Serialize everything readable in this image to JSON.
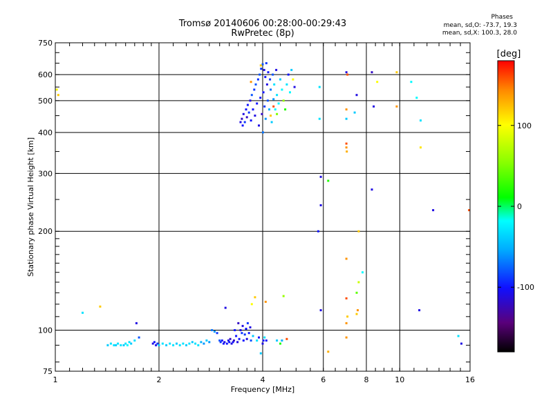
{
  "header": {
    "title_line1": "Tromsø 20140606 00:28:00-00:29:43",
    "title_line2": "RwPretec (8p)",
    "phases_title": "Phases",
    "phases_o": "mean, sd,O: -73.7, 19.3",
    "phases_x": "mean, sd,X: 100.3, 28.0"
  },
  "chart_data": {
    "type": "scatter",
    "xlabel": "Frequency [MHz]",
    "ylabel": "Stationary phase Virtual Height [km]",
    "x_scale": "log",
    "y_scale": "log",
    "xlim": [
      1,
      16
    ],
    "ylim": [
      75,
      750
    ],
    "x_ticks": [
      1,
      2,
      4,
      6,
      8,
      10,
      16
    ],
    "y_ticks": [
      75,
      100,
      200,
      300,
      400,
      500,
      600,
      750
    ],
    "grid": true,
    "colorbar": {
      "label": "[deg]",
      "ticks": [
        100,
        0,
        -100
      ],
      "range": [
        -180,
        180
      ]
    },
    "points": [
      [
        1.01,
        540,
        100
      ],
      [
        1.02,
        520,
        120
      ],
      [
        1.2,
        113,
        -30
      ],
      [
        1.35,
        118,
        120
      ],
      [
        1.42,
        90,
        -40
      ],
      [
        1.45,
        91,
        -30
      ],
      [
        1.48,
        90,
        -30
      ],
      [
        1.5,
        90,
        -40
      ],
      [
        1.52,
        91,
        -30
      ],
      [
        1.55,
        90,
        -30
      ],
      [
        1.58,
        90,
        -40
      ],
      [
        1.6,
        91,
        -30
      ],
      [
        1.62,
        90,
        -20
      ],
      [
        1.64,
        92,
        -30
      ],
      [
        1.66,
        91,
        -40
      ],
      [
        1.7,
        93,
        -30
      ],
      [
        1.72,
        105,
        -110
      ],
      [
        1.75,
        95,
        -80
      ],
      [
        1.92,
        91,
        -110
      ],
      [
        1.94,
        92,
        -100
      ],
      [
        1.96,
        90,
        -110
      ],
      [
        1.98,
        91,
        -90
      ],
      [
        2.0,
        90,
        -40
      ],
      [
        2.05,
        91,
        -30
      ],
      [
        2.1,
        90,
        -40
      ],
      [
        2.15,
        91,
        -30
      ],
      [
        2.2,
        90,
        -30
      ],
      [
        2.25,
        91,
        -40
      ],
      [
        2.3,
        90,
        -30
      ],
      [
        2.35,
        91,
        -30
      ],
      [
        2.4,
        90,
        -40
      ],
      [
        2.45,
        91,
        -30
      ],
      [
        2.5,
        92,
        -40
      ],
      [
        2.55,
        91,
        -30
      ],
      [
        2.6,
        90,
        -30
      ],
      [
        2.65,
        92,
        -50
      ],
      [
        2.7,
        91,
        -60
      ],
      [
        2.75,
        93,
        -40
      ],
      [
        2.8,
        92,
        -60
      ],
      [
        2.85,
        100,
        -70
      ],
      [
        2.9,
        99,
        -60
      ],
      [
        2.95,
        98,
        -90
      ],
      [
        3.0,
        93,
        -80
      ],
      [
        3.02,
        92,
        -90
      ],
      [
        3.05,
        93,
        -100
      ],
      [
        3.08,
        91,
        -100
      ],
      [
        3.1,
        92,
        -110
      ],
      [
        3.12,
        117,
        -110
      ],
      [
        3.15,
        91,
        -100
      ],
      [
        3.18,
        93,
        -110
      ],
      [
        3.2,
        92,
        -100
      ],
      [
        3.22,
        94,
        -120
      ],
      [
        3.25,
        91,
        -110
      ],
      [
        3.28,
        92,
        -100
      ],
      [
        3.3,
        93,
        -120
      ],
      [
        3.32,
        100,
        -100
      ],
      [
        3.35,
        96,
        -100
      ],
      [
        3.38,
        92,
        -110
      ],
      [
        3.4,
        105,
        -120
      ],
      [
        3.42,
        94,
        -100
      ],
      [
        3.45,
        100,
        -110
      ],
      [
        3.48,
        98,
        -90
      ],
      [
        3.5,
        103,
        -110
      ],
      [
        3.52,
        93,
        -100
      ],
      [
        3.55,
        97,
        -90
      ],
      [
        3.58,
        101,
        -100
      ],
      [
        3.6,
        94,
        -110
      ],
      [
        3.62,
        105,
        -90
      ],
      [
        3.65,
        98,
        -100
      ],
      [
        3.68,
        102,
        -110
      ],
      [
        3.7,
        93,
        -80
      ],
      [
        3.72,
        120,
        100
      ],
      [
        3.75,
        96,
        -40
      ],
      [
        3.8,
        126,
        120
      ],
      [
        3.85,
        93,
        -30
      ],
      [
        3.9,
        95,
        -100
      ],
      [
        3.95,
        85,
        -40
      ],
      [
        4.0,
        91,
        -110
      ],
      [
        4.02,
        93,
        -100
      ],
      [
        4.05,
        95,
        -30
      ],
      [
        4.08,
        122,
        140
      ],
      [
        4.1,
        93,
        -100
      ],
      [
        4.4,
        93,
        -40
      ],
      [
        4.5,
        91,
        20
      ],
      [
        4.55,
        93,
        -50
      ],
      [
        4.6,
        127,
        60
      ],
      [
        4.7,
        94,
        160
      ],
      [
        3.45,
        430,
        -110
      ],
      [
        3.48,
        440,
        -120
      ],
      [
        3.5,
        420,
        -100
      ],
      [
        3.52,
        455,
        -110
      ],
      [
        3.55,
        430,
        -90
      ],
      [
        3.58,
        470,
        -100
      ],
      [
        3.6,
        445,
        -120
      ],
      [
        3.62,
        485,
        -100
      ],
      [
        3.65,
        460,
        -90
      ],
      [
        3.68,
        500,
        -110
      ],
      [
        3.7,
        435,
        -100
      ],
      [
        3.72,
        520,
        -80
      ],
      [
        3.75,
        470,
        -100
      ],
      [
        3.78,
        540,
        -90
      ],
      [
        3.8,
        450,
        -110
      ],
      [
        3.82,
        560,
        -80
      ],
      [
        3.85,
        490,
        -100
      ],
      [
        3.88,
        580,
        -90
      ],
      [
        3.9,
        420,
        -110
      ],
      [
        3.92,
        600,
        -80
      ],
      [
        3.94,
        510,
        -100
      ],
      [
        3.96,
        625,
        -90
      ],
      [
        3.98,
        455,
        -120
      ],
      [
        4.0,
        645,
        -80
      ],
      [
        4.01,
        400,
        -70
      ],
      [
        4.02,
        530,
        -100
      ],
      [
        4.04,
        620,
        -110
      ],
      [
        4.05,
        480,
        -90
      ],
      [
        4.07,
        590,
        -100
      ],
      [
        4.08,
        440,
        -60
      ],
      [
        4.1,
        650,
        -90
      ],
      [
        4.12,
        560,
        -110
      ],
      [
        4.14,
        500,
        -80
      ],
      [
        4.15,
        610,
        -100
      ],
      [
        4.18,
        470,
        -50
      ],
      [
        4.2,
        580,
        -90
      ],
      [
        4.22,
        540,
        -70
      ],
      [
        4.25,
        430,
        -40
      ],
      [
        4.28,
        600,
        -80
      ],
      [
        4.3,
        505,
        -60
      ],
      [
        4.32,
        560,
        -30
      ],
      [
        4.35,
        470,
        -20
      ],
      [
        4.38,
        620,
        -110
      ],
      [
        4.4,
        520,
        -30
      ],
      [
        4.45,
        490,
        -20
      ],
      [
        4.5,
        580,
        -40
      ],
      [
        4.55,
        540,
        -20
      ],
      [
        4.6,
        500,
        60
      ],
      [
        4.65,
        470,
        20
      ],
      [
        4.7,
        560,
        -30
      ],
      [
        4.75,
        600,
        -100
      ],
      [
        4.8,
        530,
        -20
      ],
      [
        4.85,
        620,
        -40
      ],
      [
        4.9,
        580,
        100
      ],
      [
        4.95,
        550,
        -110
      ],
      [
        4.22,
        450,
        120
      ],
      [
        4.3,
        480,
        160
      ],
      [
        4.4,
        455,
        50
      ],
      [
        3.7,
        570,
        140
      ],
      [
        3.95,
        640,
        120
      ],
      [
        5.85,
        550,
        -30
      ],
      [
        5.85,
        440,
        -30
      ],
      [
        5.9,
        293,
        -110
      ],
      [
        5.9,
        240,
        -110
      ],
      [
        5.8,
        200,
        -100
      ],
      [
        5.9,
        115,
        -110
      ],
      [
        6.2,
        285,
        20
      ],
      [
        6.2,
        86,
        130
      ],
      [
        7.0,
        610,
        -110
      ],
      [
        7.05,
        600,
        160
      ],
      [
        7.0,
        470,
        140
      ],
      [
        7.0,
        440,
        -40
      ],
      [
        7.0,
        370,
        160
      ],
      [
        7.0,
        360,
        140
      ],
      [
        7.02,
        350,
        130
      ],
      [
        7.0,
        165,
        140
      ],
      [
        7.0,
        125,
        160
      ],
      [
        7.05,
        110,
        120
      ],
      [
        7.0,
        105,
        140
      ],
      [
        7.0,
        95,
        140
      ],
      [
        7.4,
        460,
        -40
      ],
      [
        7.5,
        520,
        -110
      ],
      [
        7.6,
        200,
        120
      ],
      [
        7.5,
        130,
        40
      ],
      [
        7.6,
        140,
        80
      ],
      [
        7.55,
        115,
        140
      ],
      [
        7.5,
        112,
        120
      ],
      [
        7.8,
        150,
        -20
      ],
      [
        8.3,
        610,
        -120
      ],
      [
        8.4,
        480,
        -110
      ],
      [
        8.3,
        268,
        -110
      ],
      [
        8.6,
        570,
        100
      ],
      [
        9.8,
        610,
        120
      ],
      [
        9.8,
        480,
        140
      ],
      [
        10.8,
        570,
        -20
      ],
      [
        11.2,
        510,
        -20
      ],
      [
        11.5,
        435,
        -30
      ],
      [
        11.5,
        360,
        110
      ],
      [
        11.4,
        115,
        -110
      ],
      [
        12.5,
        232,
        -110
      ],
      [
        14.8,
        96,
        -30
      ],
      [
        15.1,
        91,
        -110
      ],
      [
        15.9,
        232,
        160
      ]
    ]
  }
}
